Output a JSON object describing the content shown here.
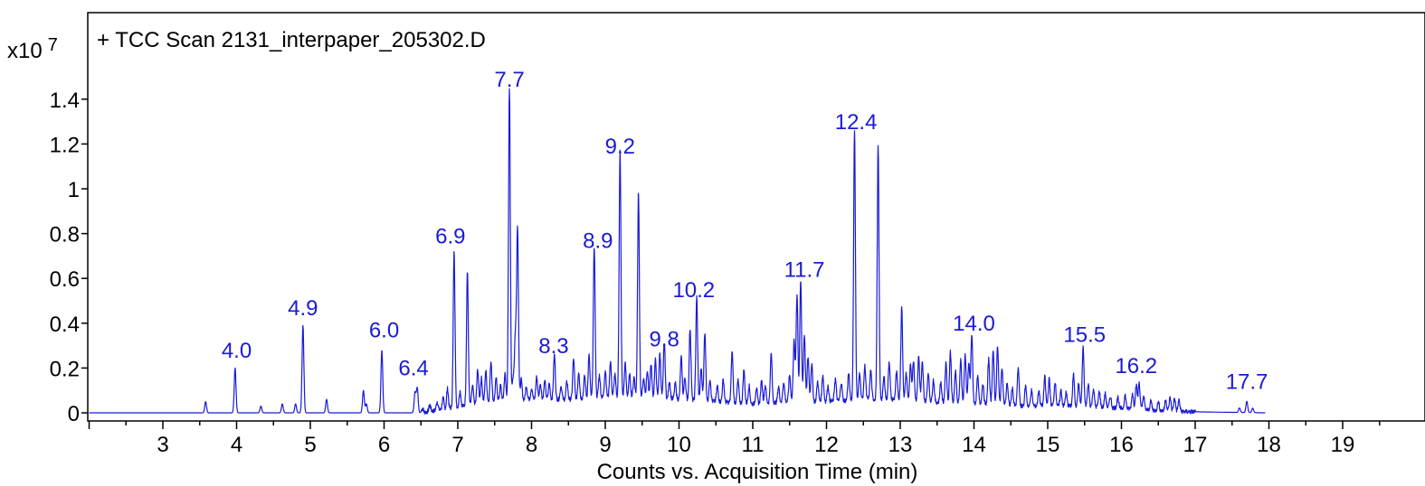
{
  "chart_data": {
    "type": "line",
    "title": "+ TCC Scan 2131_interpaper_205302.D",
    "xlabel": "Counts vs. Acquisition Time (min)",
    "ylabel": "",
    "y_multiplier": "x10",
    "y_exponent": "7",
    "xlim": [
      2,
      20
    ],
    "ylim": [
      -0.03,
      1.62
    ],
    "x_ticks": [
      3,
      4,
      5,
      6,
      7,
      8,
      9,
      10,
      11,
      12,
      13,
      14,
      15,
      16,
      17,
      18,
      19
    ],
    "x_tick_labels": [
      "3",
      "4",
      "5",
      "6",
      "7",
      "8",
      "9",
      "10",
      "11",
      "12",
      "13",
      "14",
      "15",
      "16",
      "17",
      "18",
      "19"
    ],
    "y_ticks": [
      0,
      0.2,
      0.4,
      0.6,
      0.8,
      1,
      1.2,
      1.4
    ],
    "y_tick_labels": [
      "0",
      "0.2",
      "0.4",
      "0.6",
      "0.8",
      "1",
      "1.2",
      "1.4"
    ],
    "line_color": "#1a1ad6",
    "annotation_color": "#1a1ad6",
    "grid": false,
    "peak_labels": [
      {
        "x": 4.0,
        "y": 0.19,
        "text": "4.0"
      },
      {
        "x": 4.9,
        "y": 0.38,
        "text": "4.9"
      },
      {
        "x": 6.0,
        "y": 0.28,
        "text": "6.0"
      },
      {
        "x": 6.4,
        "y": 0.11,
        "text": "6.4"
      },
      {
        "x": 6.9,
        "y": 0.7,
        "text": "6.9"
      },
      {
        "x": 7.7,
        "y": 1.4,
        "text": "7.7"
      },
      {
        "x": 8.3,
        "y": 0.21,
        "text": "8.3"
      },
      {
        "x": 8.9,
        "y": 0.68,
        "text": "8.9"
      },
      {
        "x": 9.2,
        "y": 1.1,
        "text": "9.2"
      },
      {
        "x": 9.8,
        "y": 0.24,
        "text": "9.8"
      },
      {
        "x": 10.2,
        "y": 0.46,
        "text": "10.2"
      },
      {
        "x": 11.7,
        "y": 0.55,
        "text": "11.7"
      },
      {
        "x": 12.4,
        "y": 1.21,
        "text": "12.4"
      },
      {
        "x": 14.0,
        "y": 0.31,
        "text": "14.0"
      },
      {
        "x": 15.5,
        "y": 0.26,
        "text": "15.5"
      },
      {
        "x": 16.2,
        "y": 0.12,
        "text": "16.2"
      },
      {
        "x": 17.7,
        "y": 0.05,
        "text": "17.7"
      }
    ],
    "series": [
      {
        "trace_end": 17.95,
        "peaks": [
          [
            3.58,
            0.05
          ],
          [
            3.98,
            0.2
          ],
          [
            4.33,
            0.03
          ],
          [
            4.62,
            0.04
          ],
          [
            4.8,
            0.04
          ],
          [
            4.9,
            0.39
          ],
          [
            5.22,
            0.06
          ],
          [
            5.72,
            0.1
          ],
          [
            5.76,
            0.04
          ],
          [
            5.97,
            0.28
          ],
          [
            6.42,
            0.09
          ],
          [
            6.45,
            0.11
          ],
          [
            6.52,
            0.02
          ],
          [
            6.62,
            0.03
          ],
          [
            6.72,
            0.04
          ],
          [
            6.8,
            0.05
          ],
          [
            6.86,
            0.09
          ],
          [
            6.95,
            0.7
          ],
          [
            7.03,
            0.07
          ],
          [
            7.13,
            0.6
          ],
          [
            7.2,
            0.08
          ],
          [
            7.27,
            0.15
          ],
          [
            7.32,
            0.11
          ],
          [
            7.38,
            0.14
          ],
          [
            7.45,
            0.18
          ],
          [
            7.52,
            0.1
          ],
          [
            7.58,
            0.07
          ],
          [
            7.64,
            0.12
          ],
          [
            7.7,
            1.4
          ],
          [
            7.75,
            0.1
          ],
          [
            7.78,
            0.28
          ],
          [
            7.81,
            0.77
          ],
          [
            7.86,
            0.09
          ],
          [
            7.93,
            0.06
          ],
          [
            8.0,
            0.05
          ],
          [
            8.07,
            0.1
          ],
          [
            8.12,
            0.07
          ],
          [
            8.18,
            0.08
          ],
          [
            8.24,
            0.07
          ],
          [
            8.31,
            0.2
          ],
          [
            8.4,
            0.06
          ],
          [
            8.48,
            0.08
          ],
          [
            8.57,
            0.18
          ],
          [
            8.64,
            0.12
          ],
          [
            8.72,
            0.1
          ],
          [
            8.78,
            0.19
          ],
          [
            8.85,
            0.68
          ],
          [
            8.92,
            0.1
          ],
          [
            9.0,
            0.12
          ],
          [
            9.07,
            0.16
          ],
          [
            9.13,
            0.1
          ],
          [
            9.2,
            1.1
          ],
          [
            9.27,
            0.15
          ],
          [
            9.33,
            0.1
          ],
          [
            9.39,
            0.09
          ],
          [
            9.45,
            0.92
          ],
          [
            9.52,
            0.08
          ],
          [
            9.57,
            0.12
          ],
          [
            9.62,
            0.15
          ],
          [
            9.68,
            0.17
          ],
          [
            9.74,
            0.2
          ],
          [
            9.8,
            0.25
          ],
          [
            9.87,
            0.08
          ],
          [
            9.95,
            0.07
          ],
          [
            10.03,
            0.19
          ],
          [
            10.08,
            0.1
          ],
          [
            10.15,
            0.32
          ],
          [
            10.24,
            0.46
          ],
          [
            10.3,
            0.14
          ],
          [
            10.35,
            0.31
          ],
          [
            10.42,
            0.1
          ],
          [
            10.52,
            0.07
          ],
          [
            10.6,
            0.1
          ],
          [
            10.72,
            0.23
          ],
          [
            10.8,
            0.1
          ],
          [
            10.88,
            0.15
          ],
          [
            10.95,
            0.08
          ],
          [
            11.05,
            0.07
          ],
          [
            11.12,
            0.1
          ],
          [
            11.17,
            0.08
          ],
          [
            11.25,
            0.22
          ],
          [
            11.35,
            0.07
          ],
          [
            11.42,
            0.09
          ],
          [
            11.5,
            0.12
          ],
          [
            11.56,
            0.27
          ],
          [
            11.6,
            0.48
          ],
          [
            11.65,
            0.54
          ],
          [
            11.7,
            0.3
          ],
          [
            11.75,
            0.2
          ],
          [
            11.8,
            0.17
          ],
          [
            11.88,
            0.09
          ],
          [
            11.95,
            0.12
          ],
          [
            12.02,
            0.07
          ],
          [
            12.12,
            0.1
          ],
          [
            12.2,
            0.08
          ],
          [
            12.3,
            0.12
          ],
          [
            12.38,
            1.21
          ],
          [
            12.45,
            0.12
          ],
          [
            12.52,
            0.15
          ],
          [
            12.6,
            0.13
          ],
          [
            12.7,
            1.13
          ],
          [
            12.78,
            0.1
          ],
          [
            12.85,
            0.17
          ],
          [
            12.95,
            0.12
          ],
          [
            13.02,
            0.41
          ],
          [
            13.08,
            0.12
          ],
          [
            13.14,
            0.16
          ],
          [
            13.18,
            0.18
          ],
          [
            13.25,
            0.2
          ],
          [
            13.3,
            0.17
          ],
          [
            13.38,
            0.13
          ],
          [
            13.45,
            0.1
          ],
          [
            13.55,
            0.09
          ],
          [
            13.62,
            0.18
          ],
          [
            13.68,
            0.23
          ],
          [
            13.75,
            0.15
          ],
          [
            13.82,
            0.2
          ],
          [
            13.88,
            0.22
          ],
          [
            13.93,
            0.18
          ],
          [
            13.97,
            0.31
          ],
          [
            14.05,
            0.12
          ],
          [
            14.12,
            0.09
          ],
          [
            14.2,
            0.2
          ],
          [
            14.26,
            0.24
          ],
          [
            14.32,
            0.26
          ],
          [
            14.38,
            0.17
          ],
          [
            14.45,
            0.1
          ],
          [
            14.52,
            0.08
          ],
          [
            14.6,
            0.17
          ],
          [
            14.7,
            0.09
          ],
          [
            14.78,
            0.07
          ],
          [
            14.88,
            0.07
          ],
          [
            14.96,
            0.13
          ],
          [
            15.02,
            0.12
          ],
          [
            15.1,
            0.11
          ],
          [
            15.18,
            0.07
          ],
          [
            15.25,
            0.06
          ],
          [
            15.35,
            0.14
          ],
          [
            15.42,
            0.1
          ],
          [
            15.48,
            0.26
          ],
          [
            15.55,
            0.1
          ],
          [
            15.62,
            0.08
          ],
          [
            15.7,
            0.07
          ],
          [
            15.78,
            0.06
          ],
          [
            15.85,
            0.05
          ],
          [
            15.95,
            0.05
          ],
          [
            16.05,
            0.06
          ],
          [
            16.15,
            0.07
          ],
          [
            16.2,
            0.11
          ],
          [
            16.24,
            0.12
          ],
          [
            16.3,
            0.06
          ],
          [
            16.4,
            0.04
          ],
          [
            16.5,
            0.04
          ],
          [
            16.6,
            0.05
          ],
          [
            16.66,
            0.06
          ],
          [
            16.72,
            0.06
          ],
          [
            16.78,
            0.05
          ],
          [
            17.6,
            0.02
          ],
          [
            17.7,
            0.05
          ],
          [
            17.78,
            0.02
          ]
        ],
        "baseline": [
          [
            2.0,
            0.0
          ],
          [
            6.5,
            0.0
          ],
          [
            6.9,
            0.02
          ],
          [
            7.4,
            0.05
          ],
          [
            8.0,
            0.06
          ],
          [
            8.5,
            0.06
          ],
          [
            9.0,
            0.07
          ],
          [
            9.5,
            0.07
          ],
          [
            10.0,
            0.06
          ],
          [
            10.5,
            0.05
          ],
          [
            11.0,
            0.04
          ],
          [
            11.5,
            0.05
          ],
          [
            12.0,
            0.05
          ],
          [
            12.5,
            0.06
          ],
          [
            13.0,
            0.06
          ],
          [
            13.4,
            0.05
          ],
          [
            13.8,
            0.04
          ],
          [
            14.2,
            0.04
          ],
          [
            14.6,
            0.03
          ],
          [
            15.0,
            0.03
          ],
          [
            15.5,
            0.03
          ],
          [
            16.0,
            0.02
          ],
          [
            16.5,
            0.01
          ],
          [
            16.9,
            0.005
          ],
          [
            17.95,
            0.0
          ]
        ]
      }
    ]
  }
}
